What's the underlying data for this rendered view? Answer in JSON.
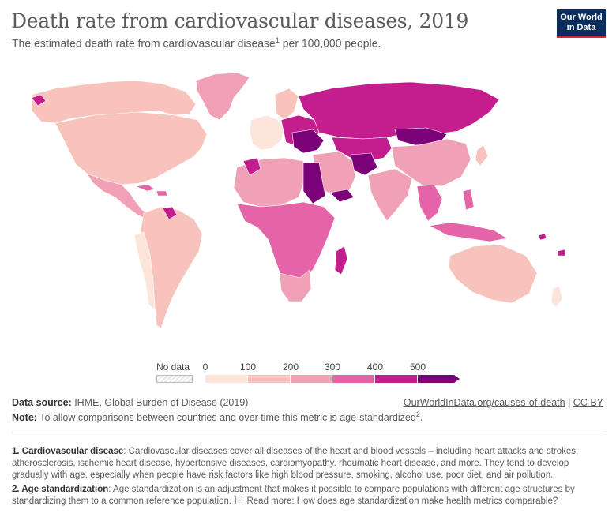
{
  "header": {
    "title": "Death rate from cardiovascular diseases, 2019",
    "subtitle_prefix": "The estimated death rate from cardiovascular disease",
    "subtitle_sup": "1",
    "subtitle_suffix": " per 100,000 people."
  },
  "logo": {
    "line1": "Our World",
    "line2": "in Data"
  },
  "legend": {
    "no_data_label": "No data",
    "ticks": [
      "0",
      "100",
      "200",
      "300",
      "400",
      "500"
    ],
    "bins": [
      {
        "range": "0-100",
        "color": "#fde5dc"
      },
      {
        "range": "100-200",
        "color": "#f8c3bd"
      },
      {
        "range": "200-300",
        "color": "#f0a1b6"
      },
      {
        "range": "300-400",
        "color": "#e564a8"
      },
      {
        "range": "400-500",
        "color": "#c41d8e"
      },
      {
        "range": "500+",
        "color": "#7a0177"
      }
    ]
  },
  "map_regions": {
    "north_america": "#f8c3bd",
    "greenland": "#f0a1b6",
    "alaska_canada_north": "#f8c3bd",
    "central_america": "#f0a1b6",
    "south_america": "#f8c3bd",
    "south_america_light": "#fde5dc",
    "guyana_region": "#c41d8e",
    "western_europe": "#fde5dc",
    "eastern_europe": "#c41d8e",
    "balkans": "#7a0177",
    "russia": "#c41d8e",
    "central_asia": "#c41d8e",
    "afghanistan": "#7a0177",
    "mongolia": "#7a0177",
    "north_africa": "#f0a1b6",
    "egypt_sudan": "#7a0177",
    "sub_saharan_africa": "#e564a8",
    "southern_africa": "#f0a1b6",
    "madagascar": "#c41d8e",
    "middle_east": "#f0a1b6",
    "yemen": "#7a0177",
    "south_asia": "#f0a1b6",
    "east_asia": "#f0a1b6",
    "southeast_asia": "#e564a8",
    "indonesia": "#e564a8",
    "australia": "#f8c3bd",
    "new_zealand": "#fde5dc",
    "oceania_islands": "#c41d8e"
  },
  "footer": {
    "source_label": "Data source:",
    "source_text": " IHME, Global Burden of Disease (2019)",
    "link_text": "OurWorldInData.org/causes-of-death",
    "link_sep": " | ",
    "license": "CC BY",
    "note_label": "Note:",
    "note_text": " To allow comparisons between countries and over time this metric is age-standardized",
    "note_sup": "2",
    "note_end": "."
  },
  "footnotes": [
    {
      "label": "1. Cardiovascular disease",
      "text": ": Cardiovascular diseases cover all diseases of the heart and blood vessels – including heart attacks and strokes, atherosclerosis, ischemic heart disease, hypertensive diseases, cardiomyopathy, rheumatic heart disease, and more. They tend to develop gradually with age, especially when people have risk factors like high blood pressure, smoking, alcohol use, poor diet, and air pollution."
    },
    {
      "label": "2. Age standardization",
      "text": ": Age standardization is an adjustment that makes it possible to compare populations with different age structures by standardizing them to a common reference population.",
      "read_more": " Read more: How does age standardization make health metrics comparable?"
    }
  ]
}
